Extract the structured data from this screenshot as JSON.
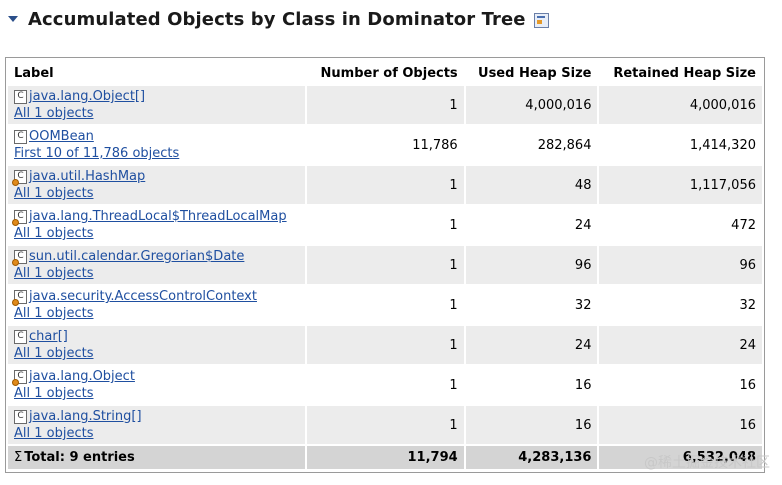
{
  "header": {
    "title": "Accumulated Objects by Class in Dominator Tree"
  },
  "table": {
    "columns": {
      "label": "Label",
      "objects": "Number of Objects",
      "used": "Used Heap Size",
      "retained": "Retained Heap Size"
    },
    "rows": [
      {
        "name": "java.lang.Object[]",
        "sub": "All 1 objects",
        "objects": "1",
        "used": "4,000,016",
        "retained": "4,000,016",
        "gc": false
      },
      {
        "name": "OOMBean",
        "sub": "First 10 of 11,786 objects",
        "objects": "11,786",
        "used": "282,864",
        "retained": "1,414,320",
        "gc": false
      },
      {
        "name": "java.util.HashMap",
        "sub": "All 1 objects",
        "objects": "1",
        "used": "48",
        "retained": "1,117,056",
        "gc": true
      },
      {
        "name": "java.lang.ThreadLocal$ThreadLocalMap",
        "sub": "All 1 objects",
        "objects": "1",
        "used": "24",
        "retained": "472",
        "gc": true
      },
      {
        "name": "sun.util.calendar.Gregorian$Date",
        "sub": "All 1 objects",
        "objects": "1",
        "used": "96",
        "retained": "96",
        "gc": true
      },
      {
        "name": "java.security.AccessControlContext",
        "sub": "All 1 objects",
        "objects": "1",
        "used": "32",
        "retained": "32",
        "gc": true
      },
      {
        "name": "char[]",
        "sub": "All 1 objects",
        "objects": "1",
        "used": "24",
        "retained": "24",
        "gc": false
      },
      {
        "name": "java.lang.Object",
        "sub": "All 1 objects",
        "objects": "1",
        "used": "16",
        "retained": "16",
        "gc": true
      },
      {
        "name": "java.lang.String[]",
        "sub": "All 1 objects",
        "objects": "1",
        "used": "16",
        "retained": "16",
        "gc": false
      }
    ],
    "total": {
      "label": "Total: 9 entries",
      "objects": "11,794",
      "used": "4,283,136",
      "retained": "6,532,048"
    }
  },
  "icons": {
    "class_icon_letter": "C",
    "sigma": "Σ"
  },
  "watermark": "@稀土掘金技术社区"
}
